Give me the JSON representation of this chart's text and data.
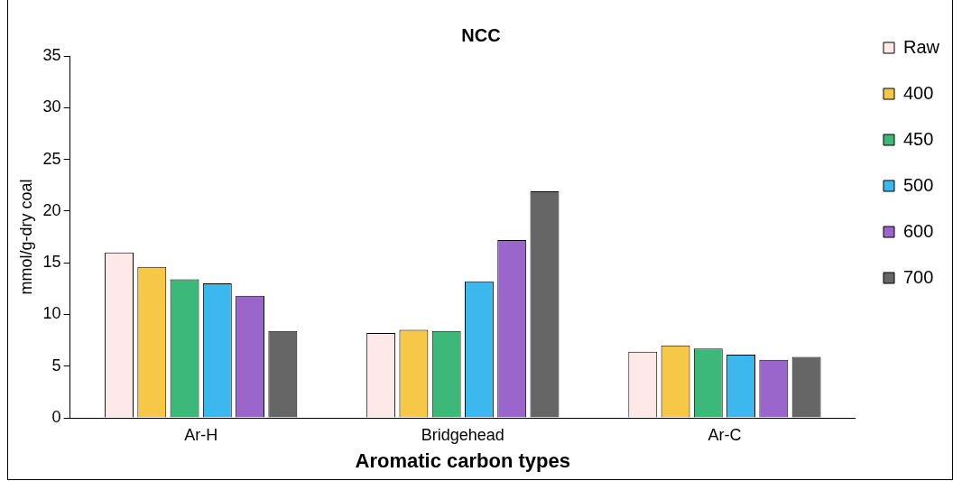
{
  "chart_data": {
    "type": "bar",
    "title": "NCC",
    "xlabel": "Aromatic carbon types",
    "ylabel": "mmol/g-dry coal",
    "categories": [
      "Ar-H",
      "Bridgehead",
      "Ar-C"
    ],
    "series": [
      {
        "name": "Raw",
        "color": "#ffe8e8",
        "values": [
          16.0,
          8.2,
          6.4
        ]
      },
      {
        "name": "400",
        "color": "#f7c848",
        "values": [
          14.6,
          8.5,
          7.0
        ]
      },
      {
        "name": "450",
        "color": "#3cb878",
        "values": [
          13.4,
          8.4,
          6.7
        ]
      },
      {
        "name": "500",
        "color": "#3cb8ee",
        "values": [
          13.0,
          13.2,
          6.1
        ]
      },
      {
        "name": "600",
        "color": "#9a66cc",
        "values": [
          11.8,
          17.2,
          5.6
        ]
      },
      {
        "name": "700",
        "color": "#666666",
        "values": [
          8.4,
          21.9,
          5.9
        ]
      }
    ],
    "ylim": [
      0,
      35
    ],
    "yticks": [
      0,
      5,
      10,
      15,
      20,
      25,
      30,
      35
    ],
    "grid": false,
    "legend": "right"
  }
}
